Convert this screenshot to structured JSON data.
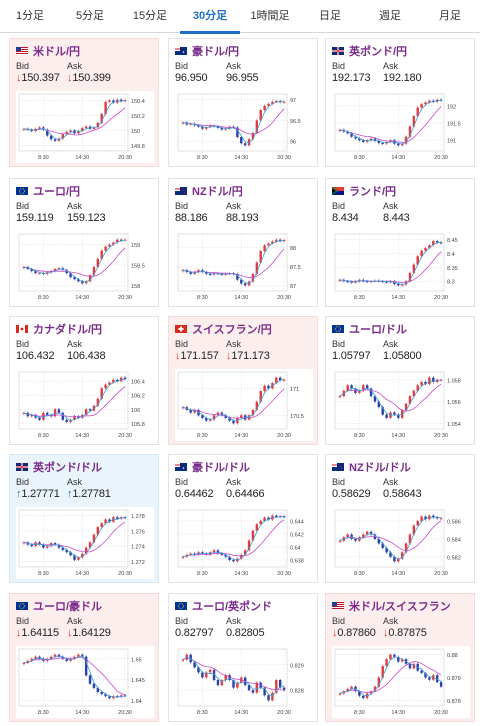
{
  "timeframe_tabs": [
    {
      "label": "1分足",
      "active": false
    },
    {
      "label": "5分足",
      "active": false
    },
    {
      "label": "15分足",
      "active": false
    },
    {
      "label": "30分足",
      "active": true
    },
    {
      "label": "1時間足",
      "active": false
    },
    {
      "label": "日足",
      "active": false
    },
    {
      "label": "週足",
      "active": false
    },
    {
      "label": "月足",
      "active": false
    }
  ],
  "labels": {
    "bid": "Bid",
    "ask": "Ask"
  },
  "colors": {
    "accent": "#1f6fc4",
    "candle_up": "#e23b3b",
    "candle_down": "#2b3fa8",
    "ma_short": "#39a0d8",
    "ma_long": "#c84bd0",
    "pair_text": "#7a2a8a",
    "tint_down": "#fdeeee",
    "tint_up": "#eaf4fc"
  },
  "pairs": [
    {
      "name": "米ドル/円",
      "flag": "flag-us",
      "tint": "down",
      "bid_arrow": "↓",
      "bid": "150.397",
      "ask_arrow": "↓",
      "ask": "150.399",
      "chart": {
        "y_ticks": [
          "150.4",
          "150.2",
          "150",
          "149.8"
        ],
        "x_ticks": [
          "8:30",
          "14:30",
          "20:30"
        ],
        "closes": [
          150.02,
          150.01,
          149.99,
          150.02,
          150.04,
          150.01,
          149.93,
          149.88,
          149.86,
          149.89,
          149.95,
          149.98,
          150.0,
          149.96,
          149.99,
          150.03,
          150.05,
          150.02,
          150.04,
          150.1,
          150.22,
          150.38,
          150.4,
          150.37,
          150.41,
          150.39,
          150.4
        ]
      }
    },
    {
      "name": "豪ドル/円",
      "flag": "flag-au",
      "tint": "none",
      "bid_arrow": "",
      "bid": "96.950",
      "ask_arrow": "",
      "ask": "96.955",
      "chart": {
        "y_ticks": [
          "97",
          "96.5",
          "96"
        ],
        "x_ticks": [
          "8:30",
          "14:30",
          "20:30"
        ],
        "closes": [
          96.45,
          96.4,
          96.42,
          96.38,
          96.35,
          96.3,
          96.34,
          96.38,
          96.36,
          96.32,
          96.28,
          96.3,
          96.35,
          96.33,
          96.1,
          95.95,
          95.9,
          96.05,
          96.2,
          96.5,
          96.75,
          96.85,
          96.9,
          96.95,
          96.97,
          96.94,
          96.95
        ]
      }
    },
    {
      "name": "英ポンド/円",
      "flag": "flag-gb",
      "tint": "none",
      "bid_arrow": "",
      "bid": "192.173",
      "ask_arrow": "",
      "ask": "192.180",
      "chart": {
        "y_ticks": [
          "192",
          "191.5",
          "191"
        ],
        "x_ticks": [
          "8:30",
          "14:30",
          "20:30"
        ],
        "closes": [
          191.3,
          191.25,
          191.2,
          191.1,
          191.05,
          191.0,
          190.95,
          191.0,
          191.05,
          190.98,
          190.92,
          190.9,
          190.95,
          191.0,
          190.9,
          190.85,
          190.9,
          191.1,
          191.4,
          191.7,
          191.95,
          192.05,
          192.1,
          192.15,
          192.12,
          192.18,
          192.17
        ]
      }
    },
    {
      "name": "ユーロ/円",
      "flag": "flag-eu",
      "tint": "none",
      "bid_arrow": "",
      "bid": "159.119",
      "ask_arrow": "",
      "ask": "159.123",
      "chart": {
        "y_ticks": [
          "159",
          "158.5",
          "158"
        ],
        "x_ticks": [
          "8:30",
          "14:30",
          "20:30"
        ],
        "closes": [
          158.45,
          158.4,
          158.35,
          158.3,
          158.3,
          158.28,
          158.32,
          158.35,
          158.4,
          158.42,
          158.38,
          158.3,
          158.2,
          158.15,
          158.1,
          158.05,
          158.1,
          158.25,
          158.45,
          158.65,
          158.85,
          158.95,
          159.0,
          159.05,
          159.12,
          159.1,
          159.12
        ]
      }
    },
    {
      "name": "NZドル/円",
      "flag": "flag-nz",
      "tint": "none",
      "bid_arrow": "",
      "bid": "88.186",
      "ask_arrow": "",
      "ask": "88.193",
      "chart": {
        "y_ticks": [
          "88",
          "87.5",
          "87"
        ],
        "x_ticks": [
          "8:30",
          "14:30",
          "20:30"
        ],
        "closes": [
          87.4,
          87.35,
          87.3,
          87.35,
          87.4,
          87.35,
          87.3,
          87.28,
          87.32,
          87.3,
          87.28,
          87.3,
          87.32,
          87.3,
          87.15,
          87.05,
          87.0,
          87.1,
          87.3,
          87.6,
          87.9,
          88.05,
          88.1,
          88.15,
          88.2,
          88.16,
          88.19
        ]
      }
    },
    {
      "name": "ランド/円",
      "flag": "flag-za",
      "tint": "none",
      "bid_arrow": "",
      "bid": "8.434",
      "ask_arrow": "",
      "ask": "8.443",
      "chart": {
        "y_ticks": [
          "8.45",
          "8.4",
          "8.35",
          "8.3"
        ],
        "x_ticks": [
          "8:30",
          "14:30",
          "20:30"
        ],
        "closes": [
          8.305,
          8.3,
          8.298,
          8.295,
          8.3,
          8.305,
          8.3,
          8.298,
          8.3,
          8.302,
          8.3,
          8.298,
          8.296,
          8.3,
          8.29,
          8.285,
          8.288,
          8.3,
          8.33,
          8.36,
          8.39,
          8.41,
          8.42,
          8.43,
          8.445,
          8.44,
          8.438
        ]
      }
    },
    {
      "name": "カナダドル/円",
      "flag": "flag-ca",
      "tint": "none",
      "bid_arrow": "",
      "bid": "106.432",
      "ask_arrow": "",
      "ask": "106.438",
      "chart": {
        "y_ticks": [
          "106.4",
          "106.2",
          "106",
          "105.8"
        ],
        "x_ticks": [
          "8:30",
          "14:30",
          "20:30"
        ],
        "closes": [
          105.95,
          105.9,
          105.92,
          105.88,
          105.85,
          105.95,
          105.92,
          105.9,
          106.0,
          105.95,
          105.85,
          105.82,
          105.85,
          105.9,
          105.88,
          105.92,
          106.0,
          105.98,
          106.05,
          106.15,
          106.3,
          106.35,
          106.38,
          106.42,
          106.4,
          106.45,
          106.43
        ]
      }
    },
    {
      "name": "スイスフラン/円",
      "flag": "flag-ch",
      "tint": "down",
      "bid_arrow": "↓",
      "bid": "171.157",
      "ask_arrow": "↓",
      "ask": "171.173",
      "chart": {
        "y_ticks": [
          "171",
          "170.5"
        ],
        "x_ticks": [
          "8:30",
          "14:30",
          "20:30"
        ],
        "closes": [
          170.65,
          170.6,
          170.55,
          170.6,
          170.5,
          170.45,
          170.4,
          170.42,
          170.5,
          170.55,
          170.5,
          170.45,
          170.4,
          170.35,
          170.45,
          170.5,
          170.42,
          170.5,
          170.6,
          170.75,
          170.95,
          171.05,
          171.0,
          171.1,
          171.2,
          171.15,
          171.16
        ]
      }
    },
    {
      "name": "ユーロ/ドル",
      "flag": "flag-eu-us",
      "tint": "none",
      "bid_arrow": "",
      "bid": "1.05797",
      "ask_arrow": "",
      "ask": "1.05800",
      "chart": {
        "y_ticks": [
          "1.058",
          "1.056",
          "1.054"
        ],
        "x_ticks": [
          "8:30",
          "14:30",
          "20:30"
        ],
        "closes": [
          1.0565,
          1.057,
          1.0575,
          1.0572,
          1.0568,
          1.057,
          1.0575,
          1.0572,
          1.0565,
          1.056,
          1.0555,
          1.0548,
          1.0545,
          1.055,
          1.0548,
          1.0545,
          1.0552,
          1.0558,
          1.0565,
          1.057,
          1.0575,
          1.0578,
          1.0576,
          1.0582,
          1.0578,
          1.058,
          1.058
        ]
      }
    },
    {
      "name": "英ポンド/ドル",
      "flag": "flag-gb-us",
      "tint": "up",
      "bid_arrow": "↑",
      "bid": "1.27771",
      "ask_arrow": "↑",
      "ask": "1.27781",
      "chart": {
        "y_ticks": [
          "1.278",
          "1.276",
          "1.274",
          "1.272"
        ],
        "x_ticks": [
          "8:30",
          "14:30",
          "20:30"
        ],
        "closes": [
          1.2745,
          1.2742,
          1.274,
          1.2745,
          1.2742,
          1.2738,
          1.274,
          1.2744,
          1.2742,
          1.2738,
          1.2735,
          1.2732,
          1.2728,
          1.2722,
          1.2725,
          1.273,
          1.2738,
          1.2745,
          1.2755,
          1.2765,
          1.277,
          1.2775,
          1.2772,
          1.2778,
          1.2776,
          1.2778,
          1.2777
        ]
      }
    },
    {
      "name": "豪ドル/ドル",
      "flag": "flag-au-us",
      "tint": "none",
      "bid_arrow": "",
      "bid": "0.64462",
      "ask_arrow": "",
      "ask": "0.64466",
      "chart": {
        "y_ticks": [
          "0.644",
          "0.642",
          "0.64",
          "0.638"
        ],
        "x_ticks": [
          "8:30",
          "14:30",
          "20:30"
        ],
        "closes": [
          0.6385,
          0.6388,
          0.639,
          0.6388,
          0.6392,
          0.639,
          0.6388,
          0.6392,
          0.6395,
          0.639,
          0.6388,
          0.6385,
          0.638,
          0.6378,
          0.6382,
          0.6388,
          0.6395,
          0.641,
          0.6425,
          0.6435,
          0.644,
          0.6445,
          0.6442,
          0.6448,
          0.6446,
          0.6447,
          0.6446
        ]
      }
    },
    {
      "name": "NZドル/ドル",
      "flag": "flag-nz-us",
      "tint": "none",
      "bid_arrow": "",
      "bid": "0.58629",
      "ask_arrow": "",
      "ask": "0.58643",
      "chart": {
        "y_ticks": [
          "0.586",
          "0.584",
          "0.582"
        ],
        "x_ticks": [
          "8:30",
          "14:30",
          "20:30"
        ],
        "closes": [
          0.5838,
          0.5842,
          0.5845,
          0.584,
          0.5838,
          0.5842,
          0.5845,
          0.5848,
          0.5845,
          0.584,
          0.5835,
          0.583,
          0.5825,
          0.582,
          0.5815,
          0.5818,
          0.5825,
          0.5835,
          0.5845,
          0.5855,
          0.586,
          0.5865,
          0.5862,
          0.5866,
          0.5864,
          0.5863,
          0.5863
        ]
      }
    },
    {
      "name": "ユーロ/豪ドル",
      "flag": "flag-eu-au",
      "tint": "down",
      "bid_arrow": "↓",
      "bid": "1.64115",
      "ask_arrow": "↓",
      "ask": "1.64129",
      "chart": {
        "y_ticks": [
          "1.65",
          "1.645",
          "1.64"
        ],
        "x_ticks": [
          "8:30",
          "14:30",
          "20:30"
        ],
        "closes": [
          1.649,
          1.6495,
          1.65,
          1.6505,
          1.65,
          1.6495,
          1.65,
          1.6505,
          1.651,
          1.6505,
          1.65,
          1.6495,
          1.65,
          1.6505,
          1.651,
          1.6505,
          1.646,
          1.644,
          1.643,
          1.642,
          1.6415,
          1.641,
          1.6405,
          1.641,
          1.6408,
          1.6412,
          1.6411
        ]
      }
    },
    {
      "name": "ユーロ/英ポンド",
      "flag": "flag-eu-gb",
      "tint": "none",
      "bid_arrow": "",
      "bid": "0.82797",
      "ask_arrow": "",
      "ask": "0.82805",
      "chart": {
        "y_ticks": [
          "0.829",
          "0.828"
        ],
        "x_ticks": [
          "8:30",
          "14:30",
          "20:30"
        ],
        "closes": [
          0.8292,
          0.8294,
          0.8291,
          0.8289,
          0.8287,
          0.8285,
          0.8287,
          0.8288,
          0.8284,
          0.8282,
          0.8284,
          0.8286,
          0.8284,
          0.8281,
          0.8283,
          0.8285,
          0.8282,
          0.828,
          0.8279,
          0.8283,
          0.8281,
          0.8278,
          0.8276,
          0.8279,
          0.8284,
          0.8281,
          0.828
        ]
      }
    },
    {
      "name": "米ドル/スイスフラン",
      "flag": "flag-us-ch",
      "tint": "down",
      "bid_arrow": "↓",
      "bid": "0.87860",
      "ask_arrow": "↓",
      "ask": "0.87875",
      "chart": {
        "y_ticks": [
          "0.88",
          "0.879",
          "0.878"
        ],
        "x_ticks": [
          "8:30",
          "14:30",
          "20:30"
        ],
        "closes": [
          0.8783,
          0.8784,
          0.8785,
          0.8786,
          0.8784,
          0.8782,
          0.8781,
          0.8783,
          0.8784,
          0.8786,
          0.879,
          0.8795,
          0.8798,
          0.88,
          0.8799,
          0.8797,
          0.8798,
          0.8796,
          0.8794,
          0.8796,
          0.8793,
          0.8792,
          0.879,
          0.8789,
          0.8791,
          0.8788,
          0.8786
        ]
      }
    }
  ]
}
